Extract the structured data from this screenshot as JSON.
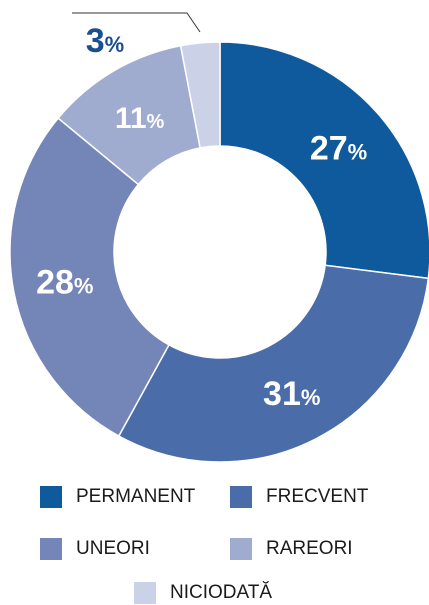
{
  "chart_data": {
    "type": "pie",
    "variant": "donut",
    "title": "",
    "categories": [
      "PERMANENT",
      "FRECVENT",
      "UNEORI",
      "RAREORI",
      "NICIODATĂ"
    ],
    "values": [
      27,
      31,
      28,
      11,
      3
    ],
    "value_labels": [
      "27",
      "31",
      "28",
      "11",
      "3"
    ],
    "unit": "%",
    "colors": [
      "#0f5a9c",
      "#4a6ca9",
      "#7485b7",
      "#a0abd0",
      "#cbd1e6"
    ],
    "label_colors": [
      "#ffffff",
      "#ffffff",
      "#ffffff",
      "#ffffff",
      "#1a4f8f"
    ],
    "legend_position": "bottom",
    "start_angle": "top, clockwise"
  }
}
